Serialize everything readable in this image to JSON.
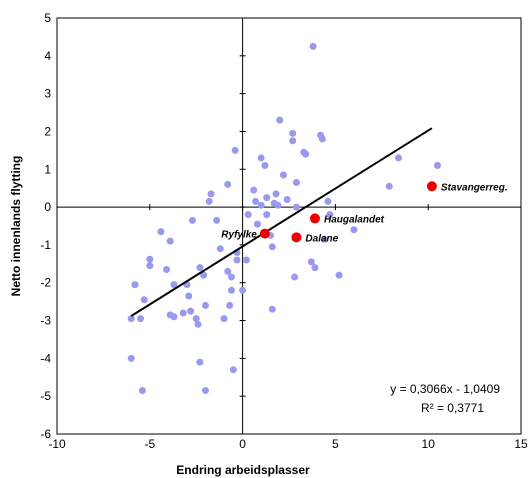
{
  "chart_data": {
    "type": "scatter",
    "xlabel": "Endring arbeidsplasser",
    "ylabel": "Netto innenlands flytting",
    "xlim": [
      -10,
      15
    ],
    "ylim": [
      -6,
      5
    ],
    "x_ticks": [
      "-10",
      "-5",
      "0",
      "5",
      "10",
      "15"
    ],
    "y_ticks": [
      "5",
      "4",
      "3",
      "2",
      "1",
      "0",
      "-1",
      "-2",
      "-3",
      "-4",
      "-5",
      "-6"
    ],
    "grid": false,
    "colors": {
      "municipality": "#9999ee",
      "region": "#ee0000",
      "trendline": "#000000"
    },
    "trendline": {
      "slope": 0.3066,
      "intercept": -1.0409,
      "x_range": [
        -6.0,
        10.2
      ],
      "equation": "y = 0,3066x - 1,0409",
      "r_squared": "R² = 0,3771"
    },
    "series": [
      {
        "points": [
          [
            -6.0,
            -2.95
          ],
          [
            -5.5,
            -2.95
          ],
          [
            -5.8,
            -2.05
          ],
          [
            -5.3,
            -2.45
          ],
          [
            -6.0,
            -4.0
          ],
          [
            -5.4,
            -4.85
          ],
          [
            -5.0,
            -1.55
          ],
          [
            -5.0,
            -1.38
          ],
          [
            -4.4,
            -0.65
          ],
          [
            -4.1,
            -1.65
          ],
          [
            -3.9,
            -0.9
          ],
          [
            -3.7,
            -2.05
          ],
          [
            -3.9,
            -2.85
          ],
          [
            -3.7,
            -2.9
          ],
          [
            -3.2,
            -2.8
          ],
          [
            -3.0,
            -2.05
          ],
          [
            -2.9,
            -2.35
          ],
          [
            -2.8,
            -2.75
          ],
          [
            -2.7,
            -0.35
          ],
          [
            -2.5,
            -2.95
          ],
          [
            -2.4,
            -3.1
          ],
          [
            -2.3,
            -1.6
          ],
          [
            -2.1,
            -1.8
          ],
          [
            -2.3,
            -4.1
          ],
          [
            -2.0,
            -4.85
          ],
          [
            -2.0,
            -2.6
          ],
          [
            -1.8,
            0.15
          ],
          [
            -1.7,
            0.35
          ],
          [
            -1.4,
            -0.35
          ],
          [
            -1.2,
            -1.1
          ],
          [
            -1.0,
            -2.95
          ],
          [
            -0.8,
            0.6
          ],
          [
            -0.8,
            -1.7
          ],
          [
            -0.6,
            -1.85
          ],
          [
            -0.6,
            -2.2
          ],
          [
            -0.5,
            -4.3
          ],
          [
            -0.7,
            -2.6
          ],
          [
            -0.4,
            1.5
          ],
          [
            -0.3,
            -1.2
          ],
          [
            -0.3,
            -1.4
          ],
          [
            0.0,
            -2.2
          ],
          [
            0.2,
            -1.4
          ],
          [
            0.3,
            -0.2
          ],
          [
            0.6,
            0.45
          ],
          [
            0.7,
            0.15
          ],
          [
            0.8,
            -0.45
          ],
          [
            1.0,
            0.05
          ],
          [
            1.0,
            1.3
          ],
          [
            1.2,
            1.1
          ],
          [
            1.3,
            0.25
          ],
          [
            1.3,
            -0.2
          ],
          [
            1.5,
            -0.75
          ],
          [
            1.6,
            -1.05
          ],
          [
            1.6,
            -2.7
          ],
          [
            1.7,
            0.1
          ],
          [
            1.8,
            0.35
          ],
          [
            1.9,
            0.05
          ],
          [
            2.0,
            2.3
          ],
          [
            2.2,
            0.85
          ],
          [
            2.4,
            0.2
          ],
          [
            2.7,
            1.95
          ],
          [
            2.7,
            1.75
          ],
          [
            2.8,
            -1.85
          ],
          [
            2.9,
            0.65
          ],
          [
            2.9,
            0.0
          ],
          [
            3.3,
            1.45
          ],
          [
            3.4,
            1.4
          ],
          [
            3.8,
            4.25
          ],
          [
            3.7,
            -1.45
          ],
          [
            3.9,
            -1.6
          ],
          [
            4.2,
            1.9
          ],
          [
            4.3,
            1.8
          ],
          [
            4.4,
            -0.85
          ],
          [
            4.6,
            0.15
          ],
          [
            4.7,
            -0.2
          ],
          [
            5.2,
            -1.8
          ],
          [
            6.0,
            -0.6
          ],
          [
            7.9,
            0.55
          ],
          [
            8.4,
            1.3
          ],
          [
            10.5,
            1.1
          ]
        ]
      },
      {
        "points": [
          {
            "x": 1.2,
            "y": -0.7,
            "label": "Ryfylke",
            "anchor": "end"
          },
          {
            "x": 3.9,
            "y": -0.3,
            "label": "Haugalandet",
            "anchor": "start"
          },
          {
            "x": 2.9,
            "y": -0.8,
            "label": "Dalane",
            "anchor": "start"
          },
          {
            "x": 10.2,
            "y": 0.55,
            "label": "Stavangerreg.",
            "anchor": "start"
          }
        ]
      }
    ]
  }
}
